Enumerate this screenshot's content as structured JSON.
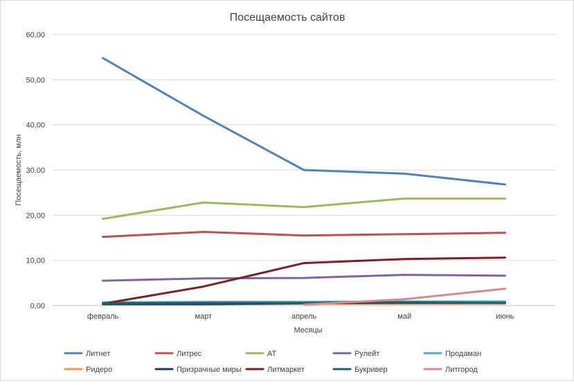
{
  "chart_data": {
    "type": "line",
    "title": "Посещаемость сайтов",
    "xlabel": "Месяцы",
    "ylabel": "Посещаемость, млн",
    "categories": [
      "февраль",
      "март",
      "апрель",
      "май",
      "июнь"
    ],
    "ylim": [
      0,
      60
    ],
    "yticks": [
      "0,00",
      "10,00",
      "20,00",
      "30,00",
      "40,00",
      "50,00",
      "60,00"
    ],
    "grid": true,
    "legend_position": "bottom",
    "series": [
      {
        "name": "Литнет",
        "color": "#4f81bd",
        "values": [
          54.8,
          42.0,
          30.0,
          29.2,
          26.8
        ]
      },
      {
        "name": "Литрес",
        "color": "#c0504d",
        "values": [
          15.2,
          16.3,
          15.5,
          15.8,
          16.1
        ]
      },
      {
        "name": "АТ",
        "color": "#9bbb59",
        "values": [
          19.2,
          22.8,
          21.8,
          23.7,
          23.7
        ]
      },
      {
        "name": "Рулейт",
        "color": "#8064a2",
        "values": [
          5.5,
          6.0,
          6.1,
          6.8,
          6.6
        ]
      },
      {
        "name": "Продаман",
        "color": "#4bacc6",
        "values": [
          0.7,
          0.8,
          0.8,
          0.9,
          0.9
        ]
      },
      {
        "name": "Ридеро",
        "color": "#f79646",
        "values": [
          0.3,
          0.3,
          0.4,
          0.4,
          0.4
        ]
      },
      {
        "name": "Призрачные миры",
        "color": "#1f3864",
        "values": [
          0.3,
          0.3,
          0.5,
          0.6,
          0.6
        ]
      },
      {
        "name": "Литмаркет",
        "color": "#7f1f1f",
        "values": [
          0.4,
          4.2,
          9.4,
          10.3,
          10.6
        ]
      },
      {
        "name": "Букривер",
        "color": "#215f6b",
        "values": [
          0.5,
          0.6,
          0.6,
          0.7,
          0.6
        ]
      },
      {
        "name": "Литгород",
        "color": "#d98a86",
        "values": [
          null,
          null,
          0.2,
          1.4,
          3.7
        ]
      }
    ]
  }
}
